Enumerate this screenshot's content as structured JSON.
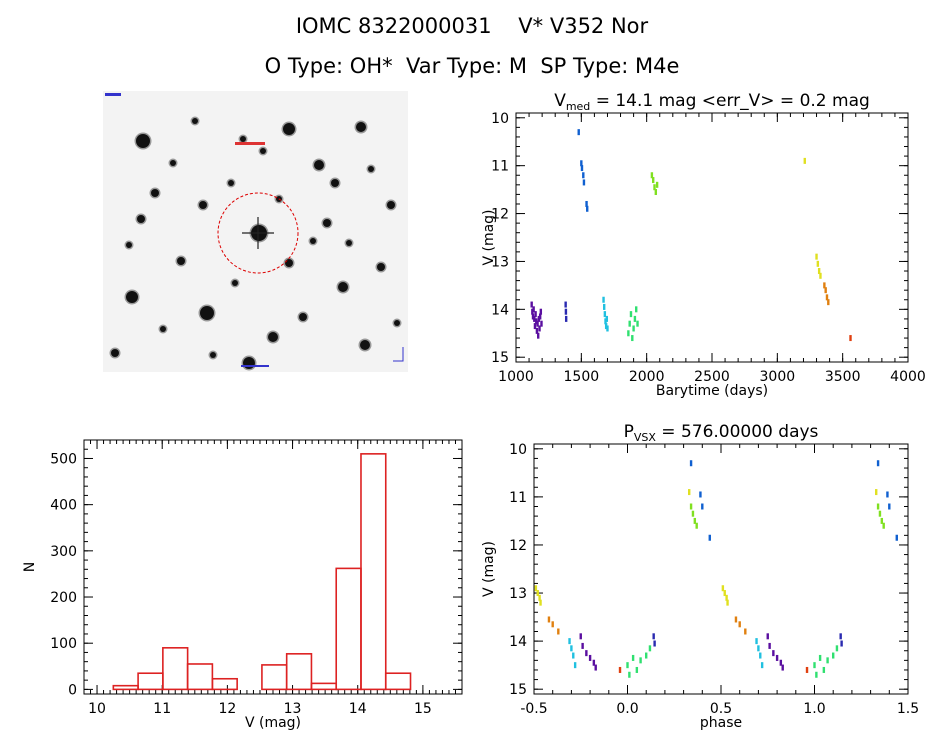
{
  "header": {
    "line1": "IOMC 8322000031    V* V352 Nor",
    "line2": "O Type: OH*  Var Type: M  SP Type: M4e"
  },
  "chart_data": [
    {
      "type": "scatter",
      "title_parts": [
        "V",
        "med",
        " = 14.1 mag <err_V> = 0.2 mag"
      ],
      "xlabel": "Barytime (days)",
      "ylabel": "V (mag)",
      "xlim": [
        1000,
        4000
      ],
      "ylim": [
        15.1,
        9.9
      ],
      "y_inverted": true,
      "xticks": [
        1000,
        1500,
        2000,
        2500,
        3000,
        3500,
        4000
      ],
      "yticks": [
        10,
        11,
        12,
        13,
        14,
        15
      ],
      "series": [
        {
          "color": "#5a0fa0",
          "points": [
            [
              1120,
              13.9
            ],
            [
              1125,
              14.05
            ],
            [
              1130,
              14.15
            ],
            [
              1135,
              14.0
            ],
            [
              1140,
              14.2
            ],
            [
              1145,
              14.35
            ],
            [
              1150,
              14.1
            ],
            [
              1155,
              14.25
            ],
            [
              1160,
              14.45
            ],
            [
              1165,
              14.3
            ],
            [
              1170,
              14.55
            ],
            [
              1175,
              14.2
            ],
            [
              1180,
              14.4
            ],
            [
              1185,
              14.15
            ],
            [
              1190,
              14.05
            ],
            [
              1195,
              14.3
            ]
          ]
        },
        {
          "color": "#2a2ab0",
          "points": [
            [
              1380,
              13.9
            ],
            [
              1382,
              14.05
            ],
            [
              1384,
              14.2
            ]
          ]
        },
        {
          "color": "#1060d0",
          "points": [
            [
              1480,
              10.3
            ],
            [
              1500,
              10.95
            ],
            [
              1505,
              11.05
            ],
            [
              1515,
              11.2
            ],
            [
              1520,
              11.35
            ],
            [
              1540,
              11.8
            ],
            [
              1545,
              11.9
            ]
          ]
        },
        {
          "color": "#20c0e0",
          "points": [
            [
              1670,
              13.8
            ],
            [
              1675,
              13.95
            ],
            [
              1680,
              14.1
            ],
            [
              1685,
              14.25
            ],
            [
              1690,
              14.35
            ],
            [
              1695,
              14.2
            ],
            [
              1700,
              14.4
            ]
          ]
        },
        {
          "color": "#30e070",
          "points": [
            [
              1860,
              14.5
            ],
            [
              1870,
              14.3
            ],
            [
              1880,
              14.1
            ],
            [
              1890,
              14.6
            ],
            [
              1900,
              14.4
            ],
            [
              1910,
              14.2
            ],
            [
              1920,
              14.0
            ],
            [
              1930,
              14.3
            ]
          ]
        },
        {
          "color": "#80e020",
          "points": [
            [
              2040,
              11.2
            ],
            [
              2050,
              11.3
            ],
            [
              2060,
              11.45
            ],
            [
              2070,
              11.55
            ],
            [
              2080,
              11.4
            ]
          ]
        },
        {
          "color": "#e0e020",
          "points": [
            [
              3210,
              10.9
            ],
            [
              3300,
              12.9
            ],
            [
              3310,
              13.05
            ],
            [
              3320,
              13.2
            ],
            [
              3330,
              13.3
            ]
          ]
        },
        {
          "color": "#e08010",
          "points": [
            [
              3360,
              13.5
            ],
            [
              3370,
              13.6
            ],
            [
              3380,
              13.75
            ],
            [
              3390,
              13.85
            ]
          ]
        },
        {
          "color": "#e04010",
          "points": [
            [
              3560,
              14.6
            ]
          ]
        }
      ]
    },
    {
      "type": "bar",
      "xlabel": "V (mag)",
      "ylabel": "N",
      "xlim": [
        9.8,
        15.6
      ],
      "ylim": [
        -10,
        540
      ],
      "xticks": [
        10,
        11,
        12,
        13,
        14,
        15
      ],
      "yticks": [
        0,
        100,
        200,
        300,
        400,
        500
      ],
      "bar_color": "#dd2222",
      "bins": [
        {
          "x0": 10.25,
          "x1": 10.63,
          "value": 8
        },
        {
          "x0": 10.63,
          "x1": 11.01,
          "value": 35
        },
        {
          "x0": 11.01,
          "x1": 11.39,
          "value": 90
        },
        {
          "x0": 11.39,
          "x1": 11.77,
          "value": 55
        },
        {
          "x0": 11.77,
          "x1": 12.15,
          "value": 23
        },
        {
          "x0": 12.15,
          "x1": 12.53,
          "value": 0
        },
        {
          "x0": 12.53,
          "x1": 12.91,
          "value": 53
        },
        {
          "x0": 12.91,
          "x1": 13.29,
          "value": 77
        },
        {
          "x0": 13.29,
          "x1": 13.67,
          "value": 13
        },
        {
          "x0": 13.67,
          "x1": 14.05,
          "value": 262
        },
        {
          "x0": 14.05,
          "x1": 14.43,
          "value": 510
        },
        {
          "x0": 14.43,
          "x1": 14.81,
          "value": 35
        }
      ]
    },
    {
      "type": "scatter",
      "title_parts": [
        "P",
        "VSX",
        " = 576.00000 days"
      ],
      "xlabel": "phase",
      "ylabel": "V (mag)",
      "xlim": [
        -0.5,
        1.5
      ],
      "ylim": [
        15.1,
        9.9
      ],
      "y_inverted": true,
      "xticks": [
        -0.5,
        0.0,
        0.5,
        1.0,
        1.5
      ],
      "xtick_labels": [
        "-0.5",
        "0.0",
        "0.5",
        "1.0",
        "1.5"
      ],
      "yticks": [
        10,
        11,
        12,
        13,
        14,
        15
      ],
      "series": [
        {
          "color": "#e0e020",
          "points": [
            [
              -0.49,
              12.9
            ],
            [
              -0.48,
              13.0
            ],
            [
              -0.47,
              13.1
            ],
            [
              -0.465,
              13.2
            ],
            [
              0.51,
              12.9
            ],
            [
              0.52,
              13.0
            ],
            [
              0.53,
              13.1
            ],
            [
              0.535,
              13.2
            ],
            [
              0.33,
              10.9
            ],
            [
              1.33,
              10.9
            ]
          ]
        },
        {
          "color": "#e08010",
          "points": [
            [
              -0.42,
              13.55
            ],
            [
              -0.4,
              13.65
            ],
            [
              -0.37,
              13.8
            ],
            [
              0.58,
              13.55
            ],
            [
              0.6,
              13.65
            ],
            [
              0.63,
              13.8
            ]
          ]
        },
        {
          "color": "#20c0e0",
          "points": [
            [
              -0.31,
              14.0
            ],
            [
              -0.3,
              14.15
            ],
            [
              -0.29,
              14.3
            ],
            [
              -0.28,
              14.5
            ],
            [
              0.69,
              14.0
            ],
            [
              0.7,
              14.15
            ],
            [
              0.71,
              14.3
            ],
            [
              0.72,
              14.5
            ]
          ]
        },
        {
          "color": "#5a0fa0",
          "points": [
            [
              -0.25,
              13.9
            ],
            [
              -0.24,
              14.1
            ],
            [
              -0.22,
              14.25
            ],
            [
              -0.2,
              14.35
            ],
            [
              -0.18,
              14.45
            ],
            [
              -0.17,
              14.55
            ],
            [
              0.75,
              13.9
            ],
            [
              0.76,
              14.1
            ],
            [
              0.78,
              14.25
            ],
            [
              0.8,
              14.35
            ],
            [
              0.82,
              14.45
            ],
            [
              0.83,
              14.55
            ]
          ]
        },
        {
          "color": "#e04010",
          "points": [
            [
              -0.04,
              14.6
            ],
            [
              0.96,
              14.6
            ]
          ]
        },
        {
          "color": "#30e070",
          "points": [
            [
              0.0,
              14.5
            ],
            [
              0.01,
              14.7
            ],
            [
              0.03,
              14.35
            ],
            [
              0.05,
              14.6
            ],
            [
              0.07,
              14.4
            ],
            [
              0.1,
              14.3
            ],
            [
              0.12,
              14.15
            ],
            [
              1.0,
              14.5
            ],
            [
              1.01,
              14.7
            ],
            [
              1.03,
              14.35
            ],
            [
              1.05,
              14.6
            ],
            [
              1.07,
              14.4
            ],
            [
              1.1,
              14.3
            ],
            [
              1.12,
              14.15
            ]
          ]
        },
        {
          "color": "#2a2ab0",
          "points": [
            [
              0.14,
              13.9
            ],
            [
              0.145,
              14.05
            ],
            [
              1.14,
              13.9
            ],
            [
              1.145,
              14.05
            ]
          ]
        },
        {
          "color": "#1060d0",
          "points": [
            [
              0.34,
              10.3
            ],
            [
              0.39,
              10.95
            ],
            [
              0.4,
              11.2
            ],
            [
              0.44,
              11.85
            ],
            [
              1.34,
              10.3
            ],
            [
              1.39,
              10.95
            ],
            [
              1.4,
              11.2
            ],
            [
              1.44,
              11.85
            ]
          ]
        },
        {
          "color": "#80e020",
          "points": [
            [
              0.34,
              11.2
            ],
            [
              0.35,
              11.35
            ],
            [
              0.36,
              11.5
            ],
            [
              0.37,
              11.6
            ],
            [
              1.34,
              11.2
            ],
            [
              1.35,
              11.35
            ],
            [
              1.36,
              11.5
            ],
            [
              1.37,
              11.6
            ]
          ]
        }
      ]
    }
  ],
  "finder": {
    "stars": [
      [
        40,
        50,
        7
      ],
      [
        186,
        38,
        6
      ],
      [
        258,
        36,
        5
      ],
      [
        216,
        74,
        5
      ],
      [
        100,
        114,
        4
      ],
      [
        52,
        102,
        4
      ],
      [
        156,
        142,
        8
      ],
      [
        186,
        172,
        4
      ],
      [
        29,
        206,
        6
      ],
      [
        104,
        222,
        7
      ],
      [
        170,
        246,
        5
      ],
      [
        146,
        272,
        6
      ],
      [
        288,
        114,
        4
      ],
      [
        240,
        196,
        5
      ],
      [
        12,
        262,
        4
      ],
      [
        224,
        132,
        4
      ],
      [
        278,
        176,
        4
      ],
      [
        128,
        92,
        3
      ],
      [
        78,
        170,
        4
      ],
      [
        200,
        226,
        4
      ],
      [
        262,
        254,
        5
      ],
      [
        60,
        238,
        3
      ],
      [
        92,
        30,
        3
      ],
      [
        232,
        92,
        4
      ],
      [
        26,
        154,
        3
      ],
      [
        132,
        192,
        3
      ],
      [
        176,
        108,
        3
      ],
      [
        246,
        152,
        3
      ],
      [
        294,
        232,
        3
      ],
      [
        110,
        264,
        3
      ],
      [
        70,
        72,
        3
      ],
      [
        160,
        60,
        3
      ],
      [
        210,
        150,
        3
      ],
      [
        140,
        48,
        3
      ],
      [
        268,
        78,
        3
      ],
      [
        38,
        128,
        4
      ]
    ]
  }
}
